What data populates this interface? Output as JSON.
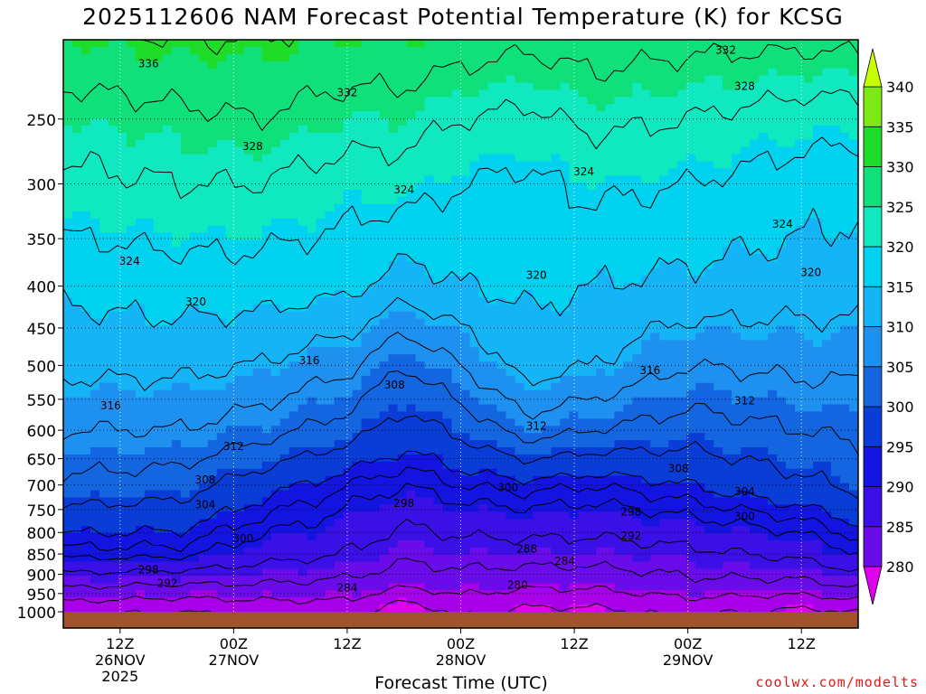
{
  "title": "2025112606 NAM Forecast Potential Temperature (K) for KCSG",
  "watermark": "coolwx.com/modelts",
  "colors": {
    "ground": "#A0522D",
    "contour_line": "#000000",
    "colorbar_fills": [
      "#A800E8",
      "#6A0CEA",
      "#3A10E6",
      "#1414E0",
      "#0A3CD6",
      "#1466E0",
      "#1E90F0",
      "#14B4F6",
      "#00D2F0",
      "#10E8C0",
      "#10E07A",
      "#1EDC28",
      "#7CE814",
      "#B4F000"
    ],
    "colorbar_ends": {
      "low": "#E000F0",
      "high": "#C8FF00"
    }
  },
  "chart_data": {
    "type": "heatmap",
    "title": "2025112606 NAM Forecast Potential Temperature (K) for KCSG",
    "xlabel": "Forecast Time (UTC)",
    "ylabel": "",
    "x_range_hours": [
      0,
      84
    ],
    "y_range_hPa": [
      1000,
      200
    ],
    "y_scale": "log",
    "grid": true,
    "y_ticks": [
      250,
      300,
      350,
      400,
      450,
      500,
      550,
      600,
      650,
      700,
      750,
      800,
      850,
      900,
      950,
      1000
    ],
    "x_ticks": [
      {
        "hour": 6,
        "lines": [
          "12Z",
          "26NOV",
          "2025"
        ]
      },
      {
        "hour": 18,
        "lines": [
          "00Z",
          "27NOV"
        ]
      },
      {
        "hour": 30,
        "lines": [
          "12Z"
        ]
      },
      {
        "hour": 42,
        "lines": [
          "00Z",
          "28NOV"
        ]
      },
      {
        "hour": 54,
        "lines": [
          "12Z"
        ]
      },
      {
        "hour": 66,
        "lines": [
          "00Z",
          "29NOV"
        ]
      },
      {
        "hour": 78,
        "lines": [
          "12Z"
        ]
      }
    ],
    "colorbar": {
      "ticks": [
        280,
        285,
        290,
        295,
        300,
        305,
        310,
        315,
        320,
        325,
        330,
        335,
        340
      ],
      "extend": "both"
    },
    "levels": [
      276,
      280,
      284,
      288,
      292,
      296,
      298,
      300,
      304,
      308,
      312,
      316,
      320,
      324,
      328,
      332,
      336
    ],
    "profiles": [
      {
        "hour": 0,
        "p": [
          1000,
          925,
          850,
          700,
          600,
          500,
          400,
          300,
          250,
          200
        ],
        "theta": [
          281,
          289,
          297,
          307,
          312,
          317,
          321,
          327,
          330,
          335
        ]
      },
      {
        "hour": 12,
        "p": [
          1000,
          925,
          850,
          700,
          600,
          500,
          400,
          300,
          250,
          200
        ],
        "theta": [
          280,
          288,
          297,
          306,
          312,
          317,
          322,
          328,
          331,
          336
        ]
      },
      {
        "hour": 20,
        "p": [
          1000,
          925,
          850,
          700,
          600,
          500,
          400,
          300,
          250,
          200
        ],
        "theta": [
          281,
          288,
          294,
          302,
          310,
          316,
          322,
          328,
          332,
          336
        ]
      },
      {
        "hour": 30,
        "p": [
          1000,
          925,
          850,
          700,
          600,
          500,
          400,
          300,
          250,
          200
        ],
        "theta": [
          282,
          287,
          292,
          298,
          306,
          313,
          321,
          326,
          330,
          335
        ]
      },
      {
        "hour": 36,
        "p": [
          1000,
          925,
          850,
          700,
          600,
          500,
          400,
          300,
          250,
          200
        ],
        "theta": [
          277,
          285,
          289,
          296,
          302,
          308,
          318,
          326,
          330,
          335
        ]
      },
      {
        "hour": 42,
        "p": [
          1000,
          925,
          850,
          700,
          600,
          500,
          400,
          300,
          250,
          200
        ],
        "theta": [
          281,
          286,
          290,
          298,
          305,
          312,
          320,
          324,
          328,
          334
        ]
      },
      {
        "hour": 49,
        "p": [
          1000,
          925,
          850,
          700,
          600,
          500,
          400,
          300,
          250,
          200
        ],
        "theta": [
          279,
          285,
          290,
          299,
          310,
          318,
          321,
          323,
          327,
          333
        ]
      },
      {
        "hour": 56,
        "p": [
          1000,
          925,
          850,
          700,
          600,
          500,
          400,
          300,
          250,
          200
        ],
        "theta": [
          279,
          285,
          290,
          298,
          308,
          316,
          320,
          325,
          329,
          334
        ]
      },
      {
        "hour": 66,
        "p": [
          1000,
          925,
          850,
          700,
          600,
          500,
          400,
          300,
          250,
          200
        ],
        "theta": [
          281,
          287,
          291,
          300,
          306,
          312,
          319,
          324,
          328,
          333
        ]
      },
      {
        "hour": 78,
        "p": [
          1000,
          925,
          850,
          700,
          600,
          500,
          400,
          300,
          250,
          200
        ],
        "theta": [
          279,
          287,
          293,
          303,
          308,
          313,
          318,
          322,
          326,
          333
        ]
      },
      {
        "hour": 84,
        "p": [
          1000,
          925,
          850,
          700,
          600,
          500,
          400,
          300,
          250,
          200
        ],
        "theta": [
          280,
          289,
          296,
          305,
          309,
          313,
          318,
          321,
          326,
          333
        ]
      }
    ],
    "contour_labels": [
      {
        "text": "336",
        "hour": 9,
        "p": 214
      },
      {
        "text": "332",
        "hour": 30,
        "p": 232
      },
      {
        "text": "332",
        "hour": 70,
        "p": 206
      },
      {
        "text": "328",
        "hour": 20,
        "p": 270
      },
      {
        "text": "328",
        "hour": 72,
        "p": 228
      },
      {
        "text": "324",
        "hour": 36,
        "p": 305
      },
      {
        "text": "324",
        "hour": 55,
        "p": 290
      },
      {
        "text": "324",
        "hour": 76,
        "p": 336
      },
      {
        "text": "324",
        "hour": 7,
        "p": 373
      },
      {
        "text": "320",
        "hour": 14,
        "p": 418
      },
      {
        "text": "320",
        "hour": 50,
        "p": 388
      },
      {
        "text": "320",
        "hour": 79,
        "p": 385
      },
      {
        "text": "316",
        "hour": 26,
        "p": 493
      },
      {
        "text": "316",
        "hour": 62,
        "p": 507
      },
      {
        "text": "316",
        "hour": 5,
        "p": 560
      },
      {
        "text": "312",
        "hour": 72,
        "p": 552
      },
      {
        "text": "312",
        "hour": 50,
        "p": 593
      },
      {
        "text": "312",
        "hour": 18,
        "p": 628
      },
      {
        "text": "308",
        "hour": 35,
        "p": 528
      },
      {
        "text": "308",
        "hour": 65,
        "p": 668
      },
      {
        "text": "308",
        "hour": 15,
        "p": 690
      },
      {
        "text": "304",
        "hour": 15,
        "p": 740
      },
      {
        "text": "304",
        "hour": 72,
        "p": 713
      },
      {
        "text": "300",
        "hour": 47,
        "p": 705
      },
      {
        "text": "300",
        "hour": 72,
        "p": 765
      },
      {
        "text": "300",
        "hour": 19,
        "p": 814
      },
      {
        "text": "298",
        "hour": 36,
        "p": 737
      },
      {
        "text": "298",
        "hour": 60,
        "p": 755
      },
      {
        "text": "298",
        "hour": 9,
        "p": 888
      },
      {
        "text": "292",
        "hour": 60,
        "p": 808
      },
      {
        "text": "292",
        "hour": 11,
        "p": 923
      },
      {
        "text": "288",
        "hour": 49,
        "p": 838
      },
      {
        "text": "284",
        "hour": 53,
        "p": 867
      },
      {
        "text": "284",
        "hour": 30,
        "p": 935
      },
      {
        "text": "280",
        "hour": 48,
        "p": 928
      }
    ]
  }
}
